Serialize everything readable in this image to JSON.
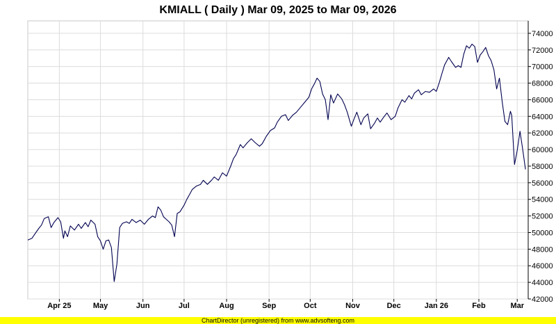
{
  "footer": {
    "text": "ChartDirector (unregistered) from www.advsofteng.com"
  },
  "chart_data": {
    "type": "line",
    "title": "KMIALL ( Daily ) Mar 09, 2025 to Mar 09, 2026",
    "xlabel": "",
    "ylabel": "",
    "ylim": [
      42000,
      75500
    ],
    "yticks": [
      42000,
      44000,
      46000,
      48000,
      50000,
      52000,
      54000,
      56000,
      58000,
      60000,
      62000,
      64000,
      66000,
      68000,
      70000,
      72000,
      74000
    ],
    "xlim": [
      "2025-03-09",
      "2026-03-09"
    ],
    "xticks": [
      {
        "date": "2025-04-01",
        "label": "Apr 25",
        "bold": true
      },
      {
        "date": "2025-05-01",
        "label": "May",
        "bold": false
      },
      {
        "date": "2025-06-01",
        "label": "Jun",
        "bold": false
      },
      {
        "date": "2025-07-01",
        "label": "Jul",
        "bold": false
      },
      {
        "date": "2025-08-01",
        "label": "Aug",
        "bold": false
      },
      {
        "date": "2025-09-01",
        "label": "Sep",
        "bold": false
      },
      {
        "date": "2025-10-01",
        "label": "Oct",
        "bold": false
      },
      {
        "date": "2025-11-01",
        "label": "Nov",
        "bold": false
      },
      {
        "date": "2025-12-01",
        "label": "Dec",
        "bold": false
      },
      {
        "date": "2026-01-01",
        "label": "Jan 26",
        "bold": true
      },
      {
        "date": "2026-02-01",
        "label": "Feb",
        "bold": false
      },
      {
        "date": "2026-03-01",
        "label": "Mar",
        "bold": false
      }
    ],
    "grid": true,
    "line_color": "#000050",
    "series": [
      {
        "points": [
          [
            "2025-03-09",
            49100
          ],
          [
            "2025-03-12",
            49300
          ],
          [
            "2025-03-14",
            49800
          ],
          [
            "2025-03-17",
            50500
          ],
          [
            "2025-03-19",
            50900
          ],
          [
            "2025-03-21",
            51700
          ],
          [
            "2025-03-24",
            51900
          ],
          [
            "2025-03-26",
            50600
          ],
          [
            "2025-03-28",
            51200
          ],
          [
            "2025-03-31",
            51800
          ],
          [
            "2025-04-02",
            51300
          ],
          [
            "2025-04-04",
            49300
          ],
          [
            "2025-04-05",
            50200
          ],
          [
            "2025-04-07",
            49500
          ],
          [
            "2025-04-09",
            50800
          ],
          [
            "2025-04-12",
            50300
          ],
          [
            "2025-04-15",
            51000
          ],
          [
            "2025-04-17",
            50500
          ],
          [
            "2025-04-20",
            51200
          ],
          [
            "2025-04-22",
            50700
          ],
          [
            "2025-04-24",
            51500
          ],
          [
            "2025-04-27",
            51000
          ],
          [
            "2025-04-29",
            49500
          ],
          [
            "2025-05-01",
            49000
          ],
          [
            "2025-05-03",
            48000
          ],
          [
            "2025-05-05",
            49000
          ],
          [
            "2025-05-07",
            49100
          ],
          [
            "2025-05-09",
            48200
          ],
          [
            "2025-05-11",
            44100
          ],
          [
            "2025-05-13",
            46200
          ],
          [
            "2025-05-15",
            50600
          ],
          [
            "2025-05-17",
            51100
          ],
          [
            "2025-05-20",
            51300
          ],
          [
            "2025-05-22",
            51100
          ],
          [
            "2025-05-24",
            51600
          ],
          [
            "2025-05-27",
            51200
          ],
          [
            "2025-05-30",
            51500
          ],
          [
            "2025-06-02",
            51000
          ],
          [
            "2025-06-05",
            51600
          ],
          [
            "2025-06-08",
            52000
          ],
          [
            "2025-06-10",
            51800
          ],
          [
            "2025-06-12",
            53100
          ],
          [
            "2025-06-14",
            52700
          ],
          [
            "2025-06-16",
            51900
          ],
          [
            "2025-06-18",
            51600
          ],
          [
            "2025-06-20",
            51300
          ],
          [
            "2025-06-22",
            50900
          ],
          [
            "2025-06-24",
            49500
          ],
          [
            "2025-06-26",
            52300
          ],
          [
            "2025-06-28",
            52500
          ],
          [
            "2025-07-01",
            53300
          ],
          [
            "2025-07-03",
            54000
          ],
          [
            "2025-07-05",
            54600
          ],
          [
            "2025-07-07",
            55200
          ],
          [
            "2025-07-10",
            55600
          ],
          [
            "2025-07-13",
            55800
          ],
          [
            "2025-07-15",
            56300
          ],
          [
            "2025-07-18",
            55800
          ],
          [
            "2025-07-21",
            56300
          ],
          [
            "2025-07-23",
            56700
          ],
          [
            "2025-07-26",
            56300
          ],
          [
            "2025-07-29",
            57200
          ],
          [
            "2025-08-01",
            56800
          ],
          [
            "2025-08-04",
            58000
          ],
          [
            "2025-08-06",
            58900
          ],
          [
            "2025-08-08",
            59400
          ],
          [
            "2025-08-11",
            60600
          ],
          [
            "2025-08-13",
            60200
          ],
          [
            "2025-08-16",
            60800
          ],
          [
            "2025-08-19",
            61300
          ],
          [
            "2025-08-22",
            60800
          ],
          [
            "2025-08-25",
            60400
          ],
          [
            "2025-08-27",
            60700
          ],
          [
            "2025-08-30",
            61600
          ],
          [
            "2025-09-02",
            62300
          ],
          [
            "2025-09-05",
            62600
          ],
          [
            "2025-09-07",
            63300
          ],
          [
            "2025-09-10",
            64000
          ],
          [
            "2025-09-13",
            64200
          ],
          [
            "2025-09-15",
            63500
          ],
          [
            "2025-09-18",
            64100
          ],
          [
            "2025-09-21",
            64500
          ],
          [
            "2025-09-24",
            65100
          ],
          [
            "2025-09-27",
            65700
          ],
          [
            "2025-09-30",
            66300
          ],
          [
            "2025-10-02",
            67300
          ],
          [
            "2025-10-04",
            67900
          ],
          [
            "2025-10-06",
            68600
          ],
          [
            "2025-10-08",
            68200
          ],
          [
            "2025-10-10",
            66700
          ],
          [
            "2025-10-12",
            66000
          ],
          [
            "2025-10-14",
            63600
          ],
          [
            "2025-10-16",
            66600
          ],
          [
            "2025-10-18",
            65600
          ],
          [
            "2025-10-21",
            66700
          ],
          [
            "2025-10-24",
            66100
          ],
          [
            "2025-10-26",
            65400
          ],
          [
            "2025-10-28",
            64500
          ],
          [
            "2025-10-31",
            62800
          ],
          [
            "2025-11-02",
            63700
          ],
          [
            "2025-11-04",
            64500
          ],
          [
            "2025-11-07",
            63000
          ],
          [
            "2025-11-09",
            63800
          ],
          [
            "2025-11-12",
            64300
          ],
          [
            "2025-11-14",
            62500
          ],
          [
            "2025-11-17",
            63200
          ],
          [
            "2025-11-19",
            63800
          ],
          [
            "2025-11-21",
            63300
          ],
          [
            "2025-11-24",
            64000
          ],
          [
            "2025-11-26",
            64400
          ],
          [
            "2025-11-29",
            63600
          ],
          [
            "2025-12-02",
            64000
          ],
          [
            "2025-12-04",
            65000
          ],
          [
            "2025-12-07",
            66000
          ],
          [
            "2025-12-09",
            65700
          ],
          [
            "2025-12-12",
            66500
          ],
          [
            "2025-12-14",
            66100
          ],
          [
            "2025-12-16",
            66800
          ],
          [
            "2025-12-19",
            67200
          ],
          [
            "2025-12-21",
            66600
          ],
          [
            "2025-12-24",
            67000
          ],
          [
            "2025-12-27",
            66900
          ],
          [
            "2025-12-30",
            67300
          ],
          [
            "2026-01-01",
            67000
          ],
          [
            "2026-01-03",
            68000
          ],
          [
            "2026-01-05",
            69100
          ],
          [
            "2026-01-07",
            70200
          ],
          [
            "2026-01-10",
            71100
          ],
          [
            "2026-01-12",
            70600
          ],
          [
            "2026-01-15",
            69900
          ],
          [
            "2026-01-17",
            70100
          ],
          [
            "2026-01-19",
            69900
          ],
          [
            "2026-01-21",
            71500
          ],
          [
            "2026-01-23",
            72500
          ],
          [
            "2026-01-25",
            72200
          ],
          [
            "2026-01-27",
            72700
          ],
          [
            "2026-01-29",
            72400
          ],
          [
            "2026-01-31",
            70500
          ],
          [
            "2026-02-02",
            71400
          ],
          [
            "2026-02-04",
            71800
          ],
          [
            "2026-02-06",
            72300
          ],
          [
            "2026-02-08",
            71300
          ],
          [
            "2026-02-10",
            70700
          ],
          [
            "2026-02-12",
            69600
          ],
          [
            "2026-02-14",
            67300
          ],
          [
            "2026-02-16",
            68600
          ],
          [
            "2026-02-18",
            65800
          ],
          [
            "2026-02-20",
            63400
          ],
          [
            "2026-02-22",
            63000
          ],
          [
            "2026-02-24",
            64600
          ],
          [
            "2026-02-25",
            64100
          ],
          [
            "2026-02-27",
            58200
          ],
          [
            "2026-03-01",
            59900
          ],
          [
            "2026-03-03",
            62200
          ],
          [
            "2026-03-05",
            60000
          ],
          [
            "2026-03-07",
            57600
          ]
        ]
      }
    ]
  }
}
